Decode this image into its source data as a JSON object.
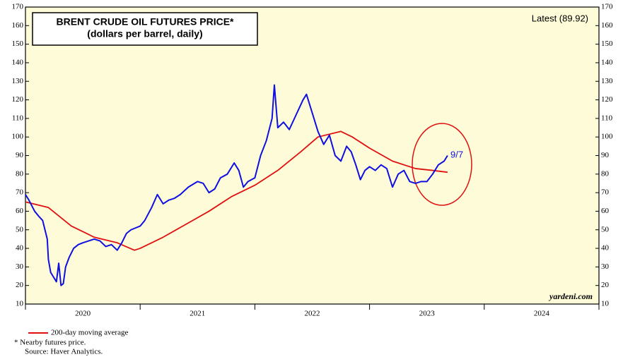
{
  "chart_data": {
    "type": "line",
    "title": "BRENT CRUDE OIL FUTURES PRICE*",
    "subtitle": "(dollars per barrel, daily)",
    "annotations": {
      "latest": "Latest (89.92)",
      "date": "9/7",
      "source_site": "yardeni.com"
    },
    "footnotes": [
      "* Nearby futures price.",
      "Source: Haver Analytics."
    ],
    "xlim": [
      2020,
      2025
    ],
    "xticks": [
      {
        "value": 2020.5,
        "label": "2020"
      },
      {
        "value": 2021.5,
        "label": "2021"
      },
      {
        "value": 2022.5,
        "label": "2022"
      },
      {
        "value": 2023.5,
        "label": "2023"
      },
      {
        "value": 2024.5,
        "label": "2024"
      }
    ],
    "ylim": [
      10,
      170
    ],
    "yticks": [
      10,
      20,
      30,
      40,
      50,
      60,
      70,
      80,
      90,
      100,
      110,
      120,
      130,
      140,
      150,
      160,
      170
    ],
    "grid": false,
    "series": [
      {
        "color": "#1010e0",
        "x": [
          2020.0,
          2020.03,
          2020.08,
          2020.12,
          2020.15,
          2020.17,
          2020.19,
          2020.2,
          2020.22,
          2020.24,
          2020.27,
          2020.29,
          2020.3,
          2020.31,
          2020.33,
          2020.35,
          2020.38,
          2020.42,
          2020.46,
          2020.5,
          2020.55,
          2020.6,
          2020.65,
          2020.7,
          2020.75,
          2020.8,
          2020.84,
          2020.88,
          2020.92,
          2020.96,
          2021.0,
          2021.04,
          2021.1,
          2021.15,
          2021.2,
          2021.25,
          2021.3,
          2021.35,
          2021.42,
          2021.5,
          2021.55,
          2021.6,
          2021.65,
          2021.7,
          2021.76,
          2021.82,
          2021.86,
          2021.9,
          2021.94,
          2022.0,
          2022.05,
          2022.1,
          2022.15,
          2022.17,
          2022.2,
          2022.25,
          2022.3,
          2022.36,
          2022.42,
          2022.45,
          2022.5,
          2022.55,
          2022.6,
          2022.65,
          2022.7,
          2022.75,
          2022.8,
          2022.84,
          2022.88,
          2022.92,
          2022.96,
          2023.0,
          2023.05,
          2023.1,
          2023.15,
          2023.2,
          2023.25,
          2023.3,
          2023.35,
          2023.4,
          2023.45,
          2023.5,
          2023.55,
          2023.6,
          2023.65,
          2023.68
        ],
        "values": [
          69,
          66,
          60,
          57,
          55,
          50,
          45,
          34,
          27,
          25,
          22,
          32,
          26,
          20,
          21,
          30,
          35,
          40,
          42,
          43,
          44,
          45,
          44,
          41,
          42,
          39,
          43,
          48,
          50,
          51,
          52,
          55,
          62,
          69,
          64,
          66,
          67,
          69,
          73,
          76,
          75,
          70,
          72,
          78,
          80,
          86,
          82,
          73,
          76,
          78,
          90,
          98,
          110,
          128,
          105,
          108,
          104,
          112,
          120,
          123,
          113,
          103,
          96,
          101,
          90,
          87,
          95,
          92,
          85,
          77,
          82,
          84,
          82,
          85,
          83,
          73,
          80,
          82,
          76,
          75,
          76,
          76,
          80,
          85,
          87,
          90
        ]
      },
      {
        "name": "200-day moving average",
        "color": "#e01010",
        "x": [
          2020.0,
          2020.2,
          2020.4,
          2020.6,
          2020.8,
          2020.95,
          2021.0,
          2021.2,
          2021.4,
          2021.6,
          2021.8,
          2022.0,
          2022.2,
          2022.4,
          2022.55,
          2022.75,
          2022.85,
          2023.0,
          2023.2,
          2023.4,
          2023.55,
          2023.68
        ],
        "values": [
          65,
          62,
          52,
          46,
          43,
          39,
          40,
          46,
          53,
          60,
          68,
          74,
          82,
          92,
          100,
          103,
          100,
          94,
          87,
          83,
          82,
          81
        ]
      }
    ]
  }
}
